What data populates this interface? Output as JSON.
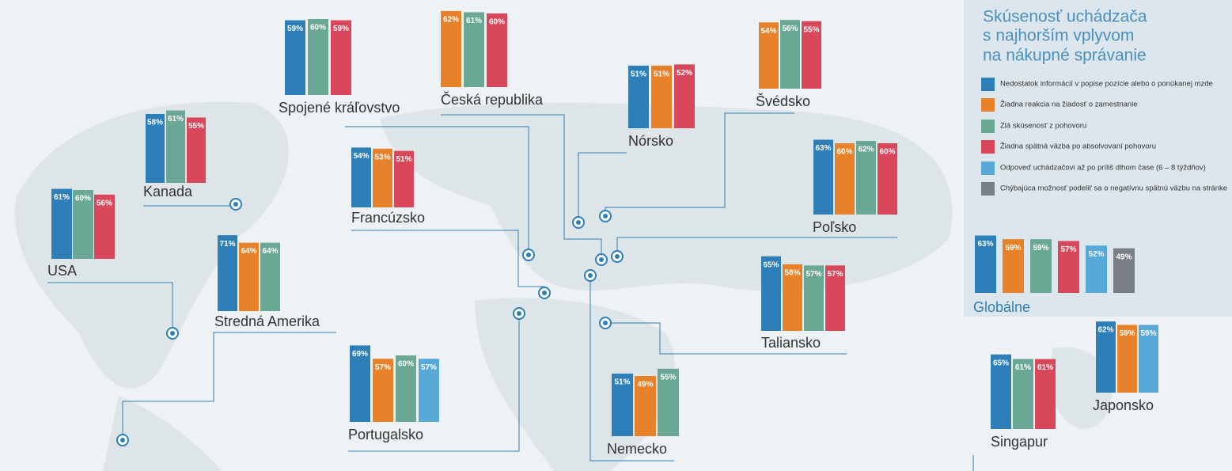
{
  "legend": {
    "title": [
      "Skúsenosť uchádzača",
      "s najhorším vplyvom",
      "na nákupné správanie"
    ],
    "items": [
      {
        "name": "Nedostatok informácií v popise pozície alebo o ponúkanej mzde",
        "color": "#2e7fb8"
      },
      {
        "name": "Žiadna reakcia na žiadosť o zamestnanie",
        "color": "#e8822a"
      },
      {
        "name": "Zlá skúsenosť z pohovoru",
        "color": "#6aa895"
      },
      {
        "name": "Žiadna spätná väzba po absolvovaní pohovoru",
        "color": "#d9475a"
      },
      {
        "name": "Odpoveď uchádzačovi až po príliš dlhom čase (6 – 8 týždňov)",
        "color": "#58a8d8"
      },
      {
        "name": "Chýbajúca možnosť podeliť sa o negatívnu spätnú väzbu na stránke",
        "color": "#7a7f86"
      }
    ]
  },
  "chart_data": [
    {
      "type": "bar",
      "title": "Spojené kráľovstvo",
      "values": [
        59,
        60,
        59
      ],
      "value_labels": [
        "59%",
        "60%",
        "59%"
      ],
      "colors": [
        "#2e7fb8",
        "#6aa895",
        "#d9475a"
      ]
    },
    {
      "type": "bar",
      "title": "Česká republika",
      "values": [
        62,
        61,
        60
      ],
      "value_labels": [
        "62%",
        "61%",
        "60%"
      ],
      "colors": [
        "#e8822a",
        "#6aa895",
        "#d9475a"
      ]
    },
    {
      "type": "bar",
      "title": "Nórsko",
      "values": [
        51,
        51,
        52
      ],
      "value_labels": [
        "51%",
        "51%",
        "52%"
      ],
      "colors": [
        "#2e7fb8",
        "#e8822a",
        "#d9475a"
      ]
    },
    {
      "type": "bar",
      "title": "Švédsko",
      "values": [
        54,
        56,
        55
      ],
      "value_labels": [
        "54%",
        "56%",
        "55%"
      ],
      "colors": [
        "#e8822a",
        "#6aa895",
        "#d9475a"
      ]
    },
    {
      "type": "bar",
      "title": "Kanada",
      "values": [
        58,
        61,
        55
      ],
      "value_labels": [
        "58%",
        "61%",
        "55%"
      ],
      "colors": [
        "#2e7fb8",
        "#6aa895",
        "#d9475a"
      ]
    },
    {
      "type": "bar",
      "title": "Francúzsko",
      "values": [
        54,
        53,
        51
      ],
      "value_labels": [
        "54%",
        "53%",
        "51%"
      ],
      "colors": [
        "#2e7fb8",
        "#e8822a",
        "#d9475a"
      ]
    },
    {
      "type": "bar",
      "title": "Poľsko",
      "values": [
        63,
        60,
        62,
        60
      ],
      "value_labels": [
        "63%",
        "60%",
        "62%",
        "60%"
      ],
      "colors": [
        "#2e7fb8",
        "#e8822a",
        "#6aa895",
        "#d9475a"
      ]
    },
    {
      "type": "bar",
      "title": "USA",
      "values": [
        61,
        60,
        56
      ],
      "value_labels": [
        "61%",
        "60%",
        "56%"
      ],
      "colors": [
        "#2e7fb8",
        "#6aa895",
        "#d9475a"
      ]
    },
    {
      "type": "bar",
      "title": "Stredná Amerika",
      "values": [
        71,
        64,
        64
      ],
      "value_labels": [
        "71%",
        "64%",
        "64%"
      ],
      "colors": [
        "#2e7fb8",
        "#e8822a",
        "#6aa895"
      ]
    },
    {
      "type": "bar",
      "title": "Taliansko",
      "values": [
        65,
        58,
        57,
        57
      ],
      "value_labels": [
        "65%",
        "58%",
        "57%",
        "57%"
      ],
      "colors": [
        "#2e7fb8",
        "#e8822a",
        "#6aa895",
        "#d9475a"
      ]
    },
    {
      "type": "bar",
      "title": "Portugalsko",
      "values": [
        69,
        57,
        60,
        57
      ],
      "value_labels": [
        "69%",
        "57%",
        "60%",
        "57%"
      ],
      "colors": [
        "#2e7fb8",
        "#e8822a",
        "#6aa895",
        "#58a8d8"
      ]
    },
    {
      "type": "bar",
      "title": "Nemecko",
      "values": [
        51,
        49,
        55
      ],
      "value_labels": [
        "51%",
        "49%",
        "55%"
      ],
      "colors": [
        "#2e7fb8",
        "#e8822a",
        "#6aa895"
      ]
    },
    {
      "type": "bar",
      "title": "Singapur",
      "values": [
        65,
        61,
        61
      ],
      "value_labels": [
        "65%",
        "61%",
        "61%"
      ],
      "colors": [
        "#2e7fb8",
        "#6aa895",
        "#d9475a"
      ]
    },
    {
      "type": "bar",
      "title": "Japonsko",
      "values": [
        62,
        59,
        59
      ],
      "value_labels": [
        "62%",
        "59%",
        "59%"
      ],
      "colors": [
        "#2e7fb8",
        "#e8822a",
        "#58a8d8"
      ]
    },
    {
      "type": "bar",
      "title": "Globálne",
      "values": [
        63,
        59,
        59,
        57,
        52,
        49
      ],
      "value_labels": [
        "63%",
        "59%",
        "59%",
        "57%",
        "52%",
        "49%"
      ],
      "colors": [
        "#2e7fb8",
        "#e8822a",
        "#6aa895",
        "#d9475a",
        "#58a8d8",
        "#7a7f86"
      ]
    }
  ]
}
